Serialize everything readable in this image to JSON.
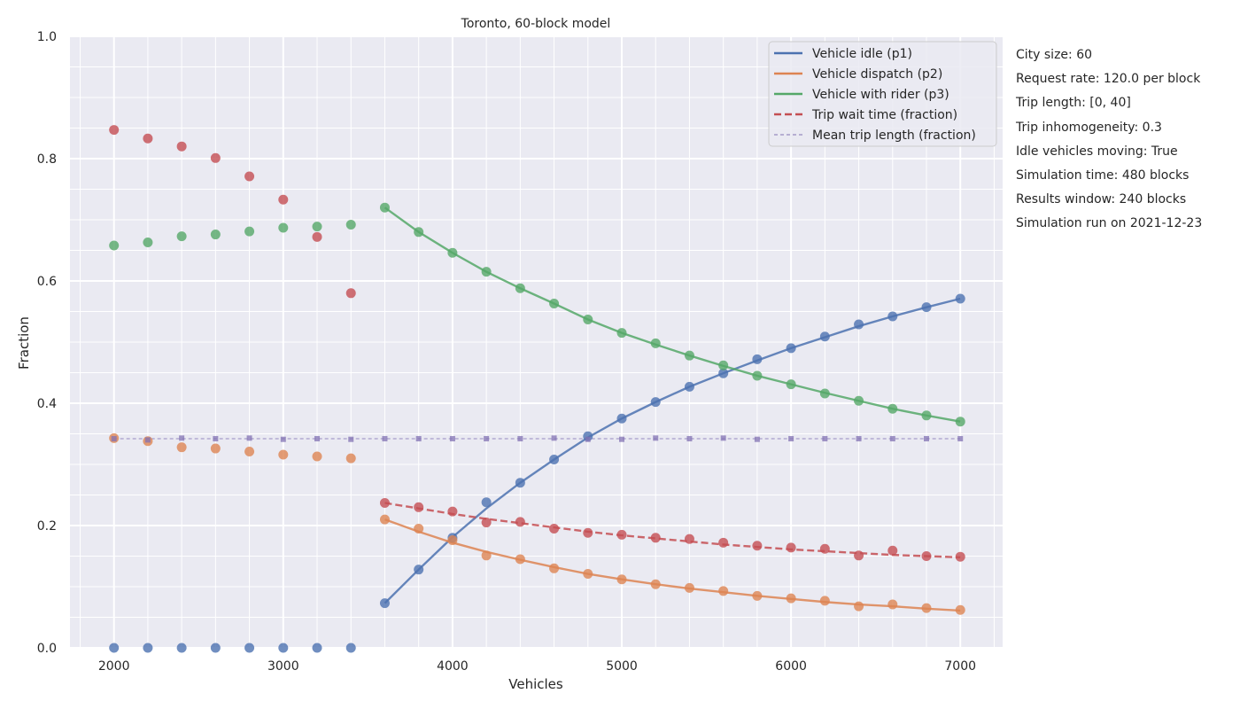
{
  "chart_data": {
    "type": "line",
    "title": "Toronto, 60-block model",
    "xlabel": "Vehicles",
    "ylabel": "Fraction",
    "xlim": [
      1740,
      7250
    ],
    "ylim": [
      0,
      1
    ],
    "xticks": [
      2000,
      3000,
      4000,
      5000,
      6000,
      7000
    ],
    "yticks": [
      0.0,
      0.2,
      0.4,
      0.6,
      0.8,
      1.0
    ],
    "ytick_labels": [
      "0.0",
      "0.2",
      "0.4",
      "0.6",
      "0.8",
      "1.0"
    ],
    "grid": true,
    "legend_position": "top-right",
    "x": [
      2000,
      2200,
      2400,
      2600,
      2800,
      3000,
      3200,
      3400,
      3600,
      3800,
      4000,
      4200,
      4400,
      4600,
      4800,
      5000,
      5200,
      5400,
      5600,
      5800,
      6000,
      6200,
      6400,
      6600,
      6800,
      7000
    ],
    "series": [
      {
        "name": "Vehicle idle (p1)",
        "color": "#4c72b0",
        "line_style": "solid",
        "points": [
          0.0,
          0.0,
          0.0,
          0.0,
          0.0,
          0.0,
          0.0,
          0.0,
          0.073,
          0.128,
          0.18,
          0.238,
          0.27,
          0.308,
          0.346,
          0.375,
          0.402,
          0.427,
          0.449,
          0.472,
          0.49,
          0.509,
          0.529,
          0.542,
          0.557,
          0.571
        ],
        "fit": [
          null,
          null,
          null,
          null,
          null,
          null,
          null,
          null,
          0.073,
          0.128,
          0.181,
          0.228,
          0.27,
          0.308,
          0.344,
          0.375,
          0.402,
          0.427,
          0.449,
          0.47,
          0.49,
          0.508,
          0.526,
          0.542,
          0.557,
          0.571
        ]
      },
      {
        "name": "Vehicle dispatch (p2)",
        "color": "#dd8452",
        "line_style": "solid",
        "points": [
          0.343,
          0.338,
          0.328,
          0.326,
          0.321,
          0.316,
          0.313,
          0.31,
          0.21,
          0.195,
          0.176,
          0.151,
          0.145,
          0.13,
          0.121,
          0.112,
          0.104,
          0.098,
          0.093,
          0.085,
          0.081,
          0.077,
          0.068,
          0.071,
          0.065,
          0.062
        ],
        "fit": [
          null,
          null,
          null,
          null,
          null,
          null,
          null,
          null,
          0.21,
          0.19,
          0.172,
          0.157,
          0.144,
          0.132,
          0.121,
          0.112,
          0.104,
          0.097,
          0.091,
          0.085,
          0.08,
          0.075,
          0.071,
          0.068,
          0.064,
          0.061
        ]
      },
      {
        "name": "Vehicle with rider (p3)",
        "color": "#55a868",
        "line_style": "solid",
        "points": [
          0.658,
          0.663,
          0.673,
          0.676,
          0.681,
          0.687,
          0.689,
          0.692,
          0.72,
          0.68,
          0.646,
          0.615,
          0.588,
          0.563,
          0.537,
          0.515,
          0.498,
          0.478,
          0.462,
          0.445,
          0.431,
          0.416,
          0.404,
          0.391,
          0.38,
          0.37
        ],
        "fit": [
          null,
          null,
          null,
          null,
          null,
          null,
          null,
          null,
          0.72,
          0.68,
          0.646,
          0.615,
          0.588,
          0.563,
          0.537,
          0.515,
          0.496,
          0.478,
          0.461,
          0.445,
          0.431,
          0.417,
          0.404,
          0.391,
          0.38,
          0.37
        ]
      },
      {
        "name": "Trip wait time (fraction)",
        "color": "#c44e52",
        "line_style": "dashed",
        "points": [
          0.847,
          0.833,
          0.82,
          0.801,
          0.771,
          0.733,
          0.672,
          0.58,
          0.237,
          0.23,
          0.223,
          0.205,
          0.206,
          0.195,
          0.188,
          0.185,
          0.18,
          0.178,
          0.172,
          0.167,
          0.164,
          0.162,
          0.151,
          0.159,
          0.15,
          0.149
        ],
        "fit": [
          null,
          null,
          null,
          null,
          null,
          null,
          null,
          null,
          0.237,
          0.228,
          0.219,
          0.211,
          0.204,
          0.197,
          0.19,
          0.184,
          0.179,
          0.174,
          0.169,
          0.165,
          0.161,
          0.158,
          0.155,
          0.152,
          0.15,
          0.148
        ]
      },
      {
        "name": "Mean trip length (fraction)",
        "color": "#8172b3",
        "line_style": "dashed",
        "points": [
          0.342,
          0.34,
          0.343,
          0.342,
          0.343,
          0.341,
          0.342,
          0.341,
          0.342,
          0.342,
          0.342,
          0.342,
          0.342,
          0.343,
          0.341,
          0.341,
          0.343,
          0.342,
          0.343,
          0.341,
          0.342,
          0.342,
          0.342,
          0.342,
          0.342,
          0.342
        ],
        "fit": [
          0.342,
          0.342,
          0.342,
          0.342,
          0.342,
          0.342,
          0.342,
          0.342,
          0.342,
          0.342,
          0.342,
          0.342,
          0.342,
          0.342,
          0.342,
          0.342,
          0.342,
          0.342,
          0.342,
          0.342,
          0.342,
          0.342,
          0.342,
          0.342,
          0.342,
          0.342
        ]
      }
    ]
  },
  "side_info": [
    "City size: 60",
    "Request rate: 120.0 per block",
    "Trip length: [0, 40]",
    "Trip inhomogeneity: 0.3",
    "Idle vehicles moving: True",
    "Simulation time: 480 blocks",
    "Results window: 240 blocks",
    "Simulation run on 2021-12-23"
  ]
}
